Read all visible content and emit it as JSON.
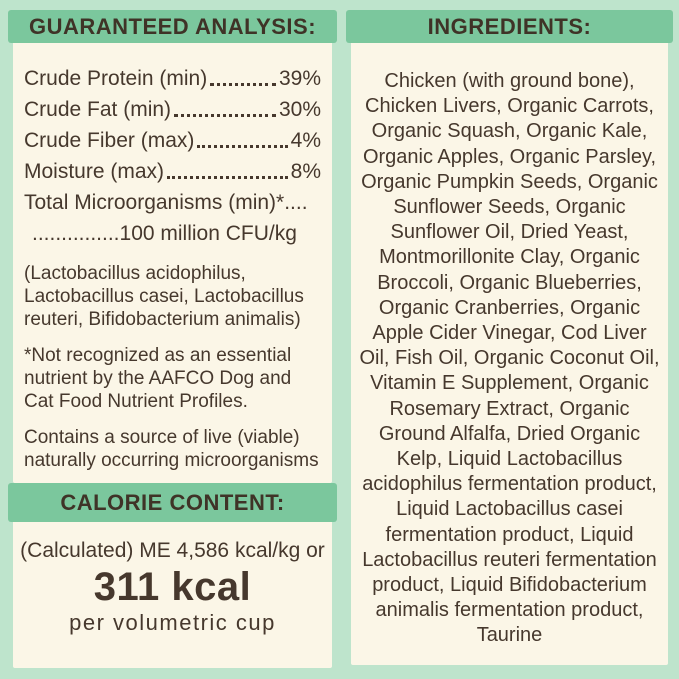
{
  "colors": {
    "mint": "#bee4cc",
    "green": "#7bc79d",
    "cream": "#fbf6e7",
    "ink": "#46382d"
  },
  "guaranteed_analysis": {
    "title": "GUARANTEED ANALYSIS:",
    "rows": [
      {
        "label": "Crude Protein (min)",
        "value": "39%"
      },
      {
        "label": "Crude Fat (min)",
        "value": "30%"
      },
      {
        "label": "Crude Fiber (max)",
        "value": "4%"
      },
      {
        "label": "Moisture (max)",
        "value": "8%"
      }
    ],
    "micro_line1": "Total Microorganisms (min)*....",
    "micro_line2": "...............100 million CFU/kg",
    "paragraphs": [
      "(Lactobacillus acidophilus, Lactobacillus casei, Lactobacillus reuteri, Bifidobacterium animalis)",
      "*Not recognized as an essential nutrient by the AAFCO Dog and Cat Food Nutrient Profiles.",
      "Contains a source of live (viable) naturally occurring microorganisms"
    ]
  },
  "calorie_content": {
    "title": "CALORIE CONTENT:",
    "line1": "(Calculated) ME 4,586 kcal/kg or",
    "kcal": "311 kcal",
    "line3": "per volumetric cup"
  },
  "ingredients": {
    "title": "INGREDIENTS:",
    "text": "Chicken (with ground bone), Chicken Livers, Organic Carrots, Organic Squash, Organic Kale, Organic Apples, Organic Parsley, Organic Pumpkin Seeds, Organic Sunflower Seeds, Organic Sunflower Oil, Dried Yeast, Montmorillonite Clay, Organic Broccoli, Organic Blueberries, Organic Cranberries, Organic Apple Cider Vinegar, Cod Liver Oil, Fish Oil, Organic Coconut Oil, Vitamin E Supplement, Organic Rosemary Extract, Organic Ground Alfalfa, Dried Organic Kelp, Liquid Lactobacillus acidophilus fermentation product, Liquid Lactobacillus casei fermentation product, Liquid Lactobacillus reuteri fermentation product, Liquid Bifidobacterium animalis fermentation product, Taurine"
  }
}
